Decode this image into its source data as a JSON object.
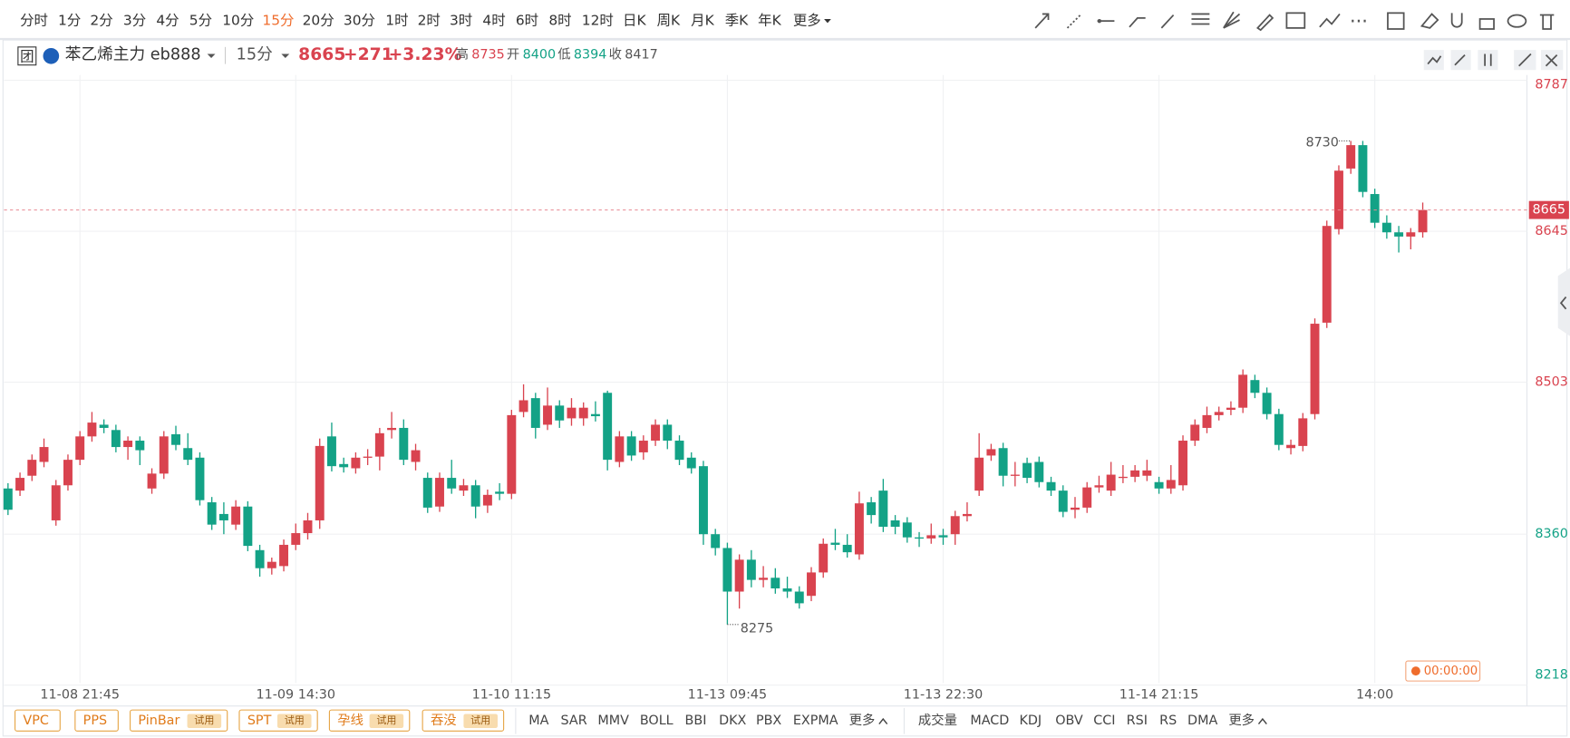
{
  "toolbar": {
    "periods": [
      "分时",
      "1分",
      "2分",
      "3分",
      "4分",
      "5分",
      "10分",
      "15分",
      "20分",
      "30分",
      "1时",
      "2时",
      "3时",
      "4时",
      "6时",
      "8时",
      "12时",
      "日K",
      "周K",
      "月K",
      "季K",
      "年K"
    ],
    "active_period": 7,
    "more": "更多"
  },
  "header": {
    "badge": "团",
    "symbol": "苯乙烯主力 eb888",
    "period": "15分",
    "price": "8665",
    "change": "+271",
    "change_pct": "+3.23%",
    "stats": [
      {
        "label": "高",
        "value": "8735",
        "color": "#d9434f"
      },
      {
        "label": "开",
        "value": "8400",
        "color": "#13a286"
      },
      {
        "label": "低",
        "value": "8394",
        "color": "#13a286"
      },
      {
        "label": "收",
        "value": "8417",
        "color": "#555555"
      }
    ]
  },
  "chart_data": {
    "type": "candlestick",
    "up_color": "#d9434f",
    "down_color": "#13a286",
    "categories": [
      null,
      null,
      null,
      null,
      null,
      null,
      "11-08 21:45",
      null,
      null,
      null,
      null,
      null,
      null,
      null,
      null,
      null,
      null,
      null,
      null,
      null,
      null,
      null,
      null,
      null,
      "11-09 14:30",
      null,
      null,
      null,
      null,
      null,
      null,
      null,
      null,
      null,
      null,
      null,
      null,
      null,
      null,
      null,
      null,
      null,
      "11-10 11:15",
      null,
      null,
      null,
      null,
      null,
      null,
      null,
      null,
      null,
      null,
      null,
      null,
      null,
      null,
      null,
      null,
      null,
      "11-13 09:45",
      null,
      null,
      null,
      null,
      null,
      null,
      null,
      null,
      null,
      null,
      null,
      null,
      null,
      null,
      null,
      null,
      null,
      "11-13 22:30",
      null,
      null,
      null,
      null,
      null,
      null,
      null,
      null,
      null,
      null,
      null,
      null,
      null,
      null,
      null,
      null,
      null,
      "11-14 21:15",
      null,
      null,
      null,
      null,
      null,
      null,
      null,
      null,
      null,
      null,
      null,
      null,
      null,
      null,
      null,
      null,
      null,
      "14:00",
      null,
      null,
      null,
      null
    ],
    "ohlc": [
      [
        8403,
        8408,
        8378,
        8383
      ],
      [
        8401,
        8418,
        8396,
        8413
      ],
      [
        8415,
        8435,
        8410,
        8430
      ],
      [
        8428,
        8450,
        8423,
        8442
      ],
      [
        8373,
        8411,
        8368,
        8406
      ],
      [
        8406,
        8435,
        8401,
        8430
      ],
      [
        8430,
        8457,
        8425,
        8452
      ],
      [
        8452,
        8475,
        8447,
        8465
      ],
      [
        8463,
        8468,
        8455,
        8460
      ],
      [
        8458,
        8463,
        8437,
        8442
      ],
      [
        8442,
        8452,
        8430,
        8448
      ],
      [
        8448,
        8452,
        8425,
        8439
      ],
      [
        8403,
        8422,
        8398,
        8417
      ],
      [
        8417,
        8457,
        8412,
        8452
      ],
      [
        8454,
        8462,
        8439,
        8444
      ],
      [
        8441,
        8455,
        8425,
        8430
      ],
      [
        8432,
        8437,
        8387,
        8392
      ],
      [
        8390,
        8395,
        8364,
        8369
      ],
      [
        8379,
        8390,
        8360,
        8373
      ],
      [
        8369,
        8392,
        8364,
        8386
      ],
      [
        8386,
        8391,
        8344,
        8349
      ],
      [
        8345,
        8350,
        8320,
        8328
      ],
      [
        8328,
        8338,
        8322,
        8334
      ],
      [
        8330,
        8355,
        8325,
        8350
      ],
      [
        8350,
        8370,
        8345,
        8361
      ],
      [
        8361,
        8380,
        8355,
        8373
      ],
      [
        8373,
        8450,
        8365,
        8443
      ],
      [
        8452,
        8465,
        8419,
        8424
      ],
      [
        8426,
        8432,
        8418,
        8423
      ],
      [
        8422,
        8437,
        8417,
        8432
      ],
      [
        8432,
        8440,
        8425,
        8433
      ],
      [
        8433,
        8460,
        8420,
        8455
      ],
      [
        8458,
        8475,
        8450,
        8460
      ],
      [
        8460,
        8468,
        8425,
        8430
      ],
      [
        8428,
        8445,
        8420,
        8439
      ],
      [
        8413,
        8418,
        8380,
        8385
      ],
      [
        8386,
        8418,
        8381,
        8413
      ],
      [
        8413,
        8430,
        8398,
        8403
      ],
      [
        8401,
        8412,
        8396,
        8406
      ],
      [
        8406,
        8411,
        8375,
        8386
      ],
      [
        8387,
        8402,
        8380,
        8397
      ],
      [
        8400,
        8408,
        8392,
        8398
      ],
      [
        8398,
        8477,
        8393,
        8472
      ],
      [
        8475,
        8501,
        8470,
        8486
      ],
      [
        8488,
        8493,
        8450,
        8460
      ],
      [
        8463,
        8498,
        8458,
        8481
      ],
      [
        8481,
        8486,
        8460,
        8467
      ],
      [
        8469,
        8488,
        8462,
        8479
      ],
      [
        8469,
        8484,
        8462,
        8479
      ],
      [
        8473,
        8485,
        8466,
        8471
      ],
      [
        8493,
        8495,
        8420,
        8430
      ],
      [
        8428,
        8457,
        8423,
        8452
      ],
      [
        8452,
        8457,
        8429,
        8434
      ],
      [
        8437,
        8453,
        8430,
        8448
      ],
      [
        8448,
        8468,
        8443,
        8463
      ],
      [
        8463,
        8468,
        8440,
        8448
      ],
      [
        8448,
        8453,
        8425,
        8430
      ],
      [
        8432,
        8437,
        8417,
        8422
      ],
      [
        8424,
        8429,
        8350,
        8360
      ],
      [
        8360,
        8365,
        8340,
        8347
      ],
      [
        8347,
        8352,
        8275,
        8306
      ],
      [
        8306,
        8341,
        8290,
        8336
      ],
      [
        8336,
        8345,
        8310,
        8317
      ],
      [
        8317,
        8330,
        8310,
        8319
      ],
      [
        8319,
        8328,
        8304,
        8309
      ],
      [
        8309,
        8320,
        8300,
        8306
      ],
      [
        8306,
        8311,
        8290,
        8295
      ],
      [
        8302,
        8329,
        8297,
        8324
      ],
      [
        8324,
        8356,
        8319,
        8351
      ],
      [
        8352,
        8365,
        8345,
        8350
      ],
      [
        8350,
        8360,
        8338,
        8343
      ],
      [
        8341,
        8400,
        8336,
        8389
      ],
      [
        8390,
        8395,
        8370,
        8378
      ],
      [
        8401,
        8412,
        8362,
        8367
      ],
      [
        8373,
        8378,
        8360,
        8367
      ],
      [
        8371,
        8376,
        8352,
        8357
      ],
      [
        8357,
        8362,
        8348,
        8356
      ],
      [
        8356,
        8370,
        8351,
        8359
      ],
      [
        8359,
        8365,
        8350,
        8357
      ],
      [
        8360,
        8382,
        8350,
        8377
      ],
      [
        8377,
        8390,
        8372,
        8379
      ],
      [
        8401,
        8455,
        8396,
        8432
      ],
      [
        8434,
        8445,
        8429,
        8440
      ],
      [
        8441,
        8446,
        8405,
        8415
      ],
      [
        8415,
        8428,
        8405,
        8416
      ],
      [
        8427,
        8432,
        8408,
        8413
      ],
      [
        8428,
        8433,
        8404,
        8409
      ],
      [
        8409,
        8414,
        8396,
        8401
      ],
      [
        8401,
        8406,
        8376,
        8381
      ],
      [
        8383,
        8395,
        8375,
        8385
      ],
      [
        8385,
        8409,
        8380,
        8404
      ],
      [
        8404,
        8415,
        8399,
        8406
      ],
      [
        8401,
        8428,
        8396,
        8416
      ],
      [
        8413,
        8425,
        8408,
        8414
      ],
      [
        8414,
        8425,
        8409,
        8420
      ],
      [
        8415,
        8430,
        8410,
        8420
      ],
      [
        8409,
        8414,
        8398,
        8403
      ],
      [
        8403,
        8425,
        8398,
        8411
      ],
      [
        8406,
        8453,
        8401,
        8448
      ],
      [
        8448,
        8468,
        8443,
        8463
      ],
      [
        8460,
        8480,
        8455,
        8472
      ],
      [
        8472,
        8480,
        8467,
        8475
      ],
      [
        8477,
        8485,
        8472,
        8479
      ],
      [
        8479,
        8515,
        8474,
        8510
      ],
      [
        8505,
        8510,
        8488,
        8493
      ],
      [
        8493,
        8498,
        8468,
        8473
      ],
      [
        8473,
        8478,
        8439,
        8444
      ],
      [
        8441,
        8449,
        8435,
        8444
      ],
      [
        8443,
        8474,
        8438,
        8469
      ],
      [
        8473,
        8563,
        8468,
        8558
      ],
      [
        8559,
        8655,
        8554,
        8650
      ],
      [
        8647,
        8707,
        8642,
        8702
      ],
      [
        8704,
        8730,
        8699,
        8726
      ],
      [
        8726,
        8730,
        8677,
        8682
      ],
      [
        8680,
        8685,
        8648,
        8653
      ],
      [
        8653,
        8660,
        8638,
        8644
      ],
      [
        8644,
        8650,
        8625,
        8640
      ],
      [
        8640,
        8648,
        8628,
        8644
      ],
      [
        8644,
        8672,
        8639,
        8665
      ]
    ],
    "ylim": [
      8220,
      8792
    ],
    "yticks": [
      8218,
      8360,
      8503,
      8645,
      8787
    ],
    "ytick_colors": [
      "#13a286",
      "#13a286",
      "#d9434f",
      "#d9434f",
      "#d9434f"
    ],
    "grid": true,
    "countdown": "00:00:00"
  },
  "indicators": {
    "patterns": [
      {
        "name": "VPC"
      },
      {
        "name": "PPS"
      },
      {
        "name": "PinBar",
        "tag": "试用"
      },
      {
        "name": "SPT",
        "tag": "试用"
      },
      {
        "name": "孕线",
        "tag": "试用"
      },
      {
        "name": "吞没",
        "tag": "试用"
      }
    ],
    "main": [
      "MA",
      "SAR",
      "MMV",
      "BOLL",
      "BBI",
      "DKX",
      "PBX",
      "EXPMA",
      "更多"
    ],
    "sub": [
      "成交量",
      "MACD",
      "KDJ",
      "OBV",
      "CCI",
      "RSI",
      "RS",
      "DMA",
      "更多"
    ]
  }
}
